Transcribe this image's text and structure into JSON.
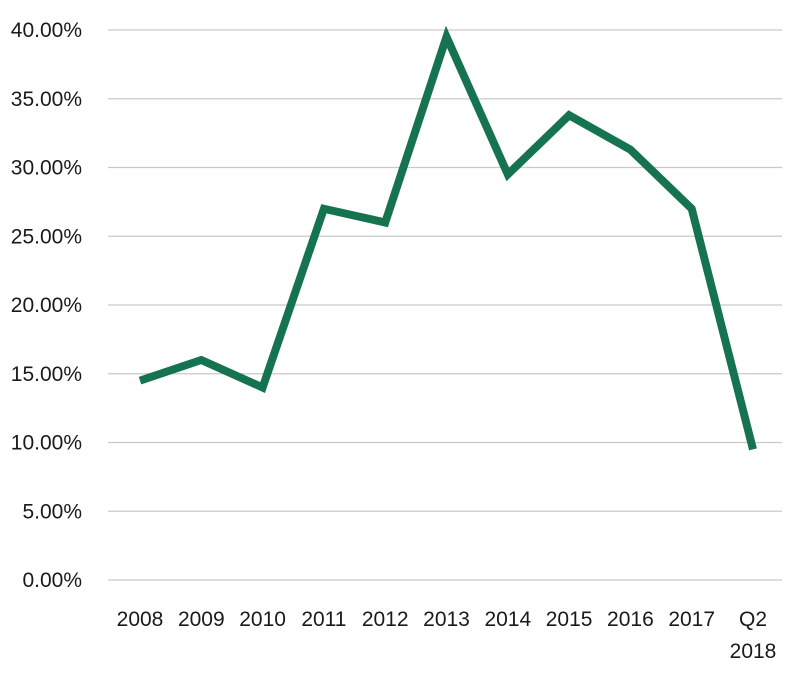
{
  "chart_data": {
    "type": "line",
    "title": "",
    "xlabel": "",
    "ylabel": "",
    "categories": [
      "2008",
      "2009",
      "2010",
      "2011",
      "2012",
      "2013",
      "2014",
      "2015",
      "2016",
      "2017",
      "Q2 2018"
    ],
    "x_tick_lines": [
      [
        "2008"
      ],
      [
        "2009"
      ],
      [
        "2010"
      ],
      [
        "2011"
      ],
      [
        "2012"
      ],
      [
        "2013"
      ],
      [
        "2014"
      ],
      [
        "2015"
      ],
      [
        "2016"
      ],
      [
        "2017"
      ],
      [
        "Q2",
        "2018"
      ]
    ],
    "series": [
      {
        "values": [
          14.5,
          16.0,
          14.0,
          27.0,
          26.0,
          39.5,
          29.5,
          33.8,
          31.3,
          27.0,
          9.5
        ],
        "color": "#16734f"
      }
    ],
    "ylim": [
      0,
      40
    ],
    "y_ticks": [
      0,
      5,
      10,
      15,
      20,
      25,
      30,
      35,
      40
    ],
    "y_tick_labels": [
      "0.00%",
      "5.00%",
      "10.00%",
      "15.00%",
      "20.00%",
      "25.00%",
      "30.00%",
      "35.00%",
      "40.00%"
    ],
    "grid": true,
    "grid_color": "#c9c9c9",
    "legend": "none"
  }
}
